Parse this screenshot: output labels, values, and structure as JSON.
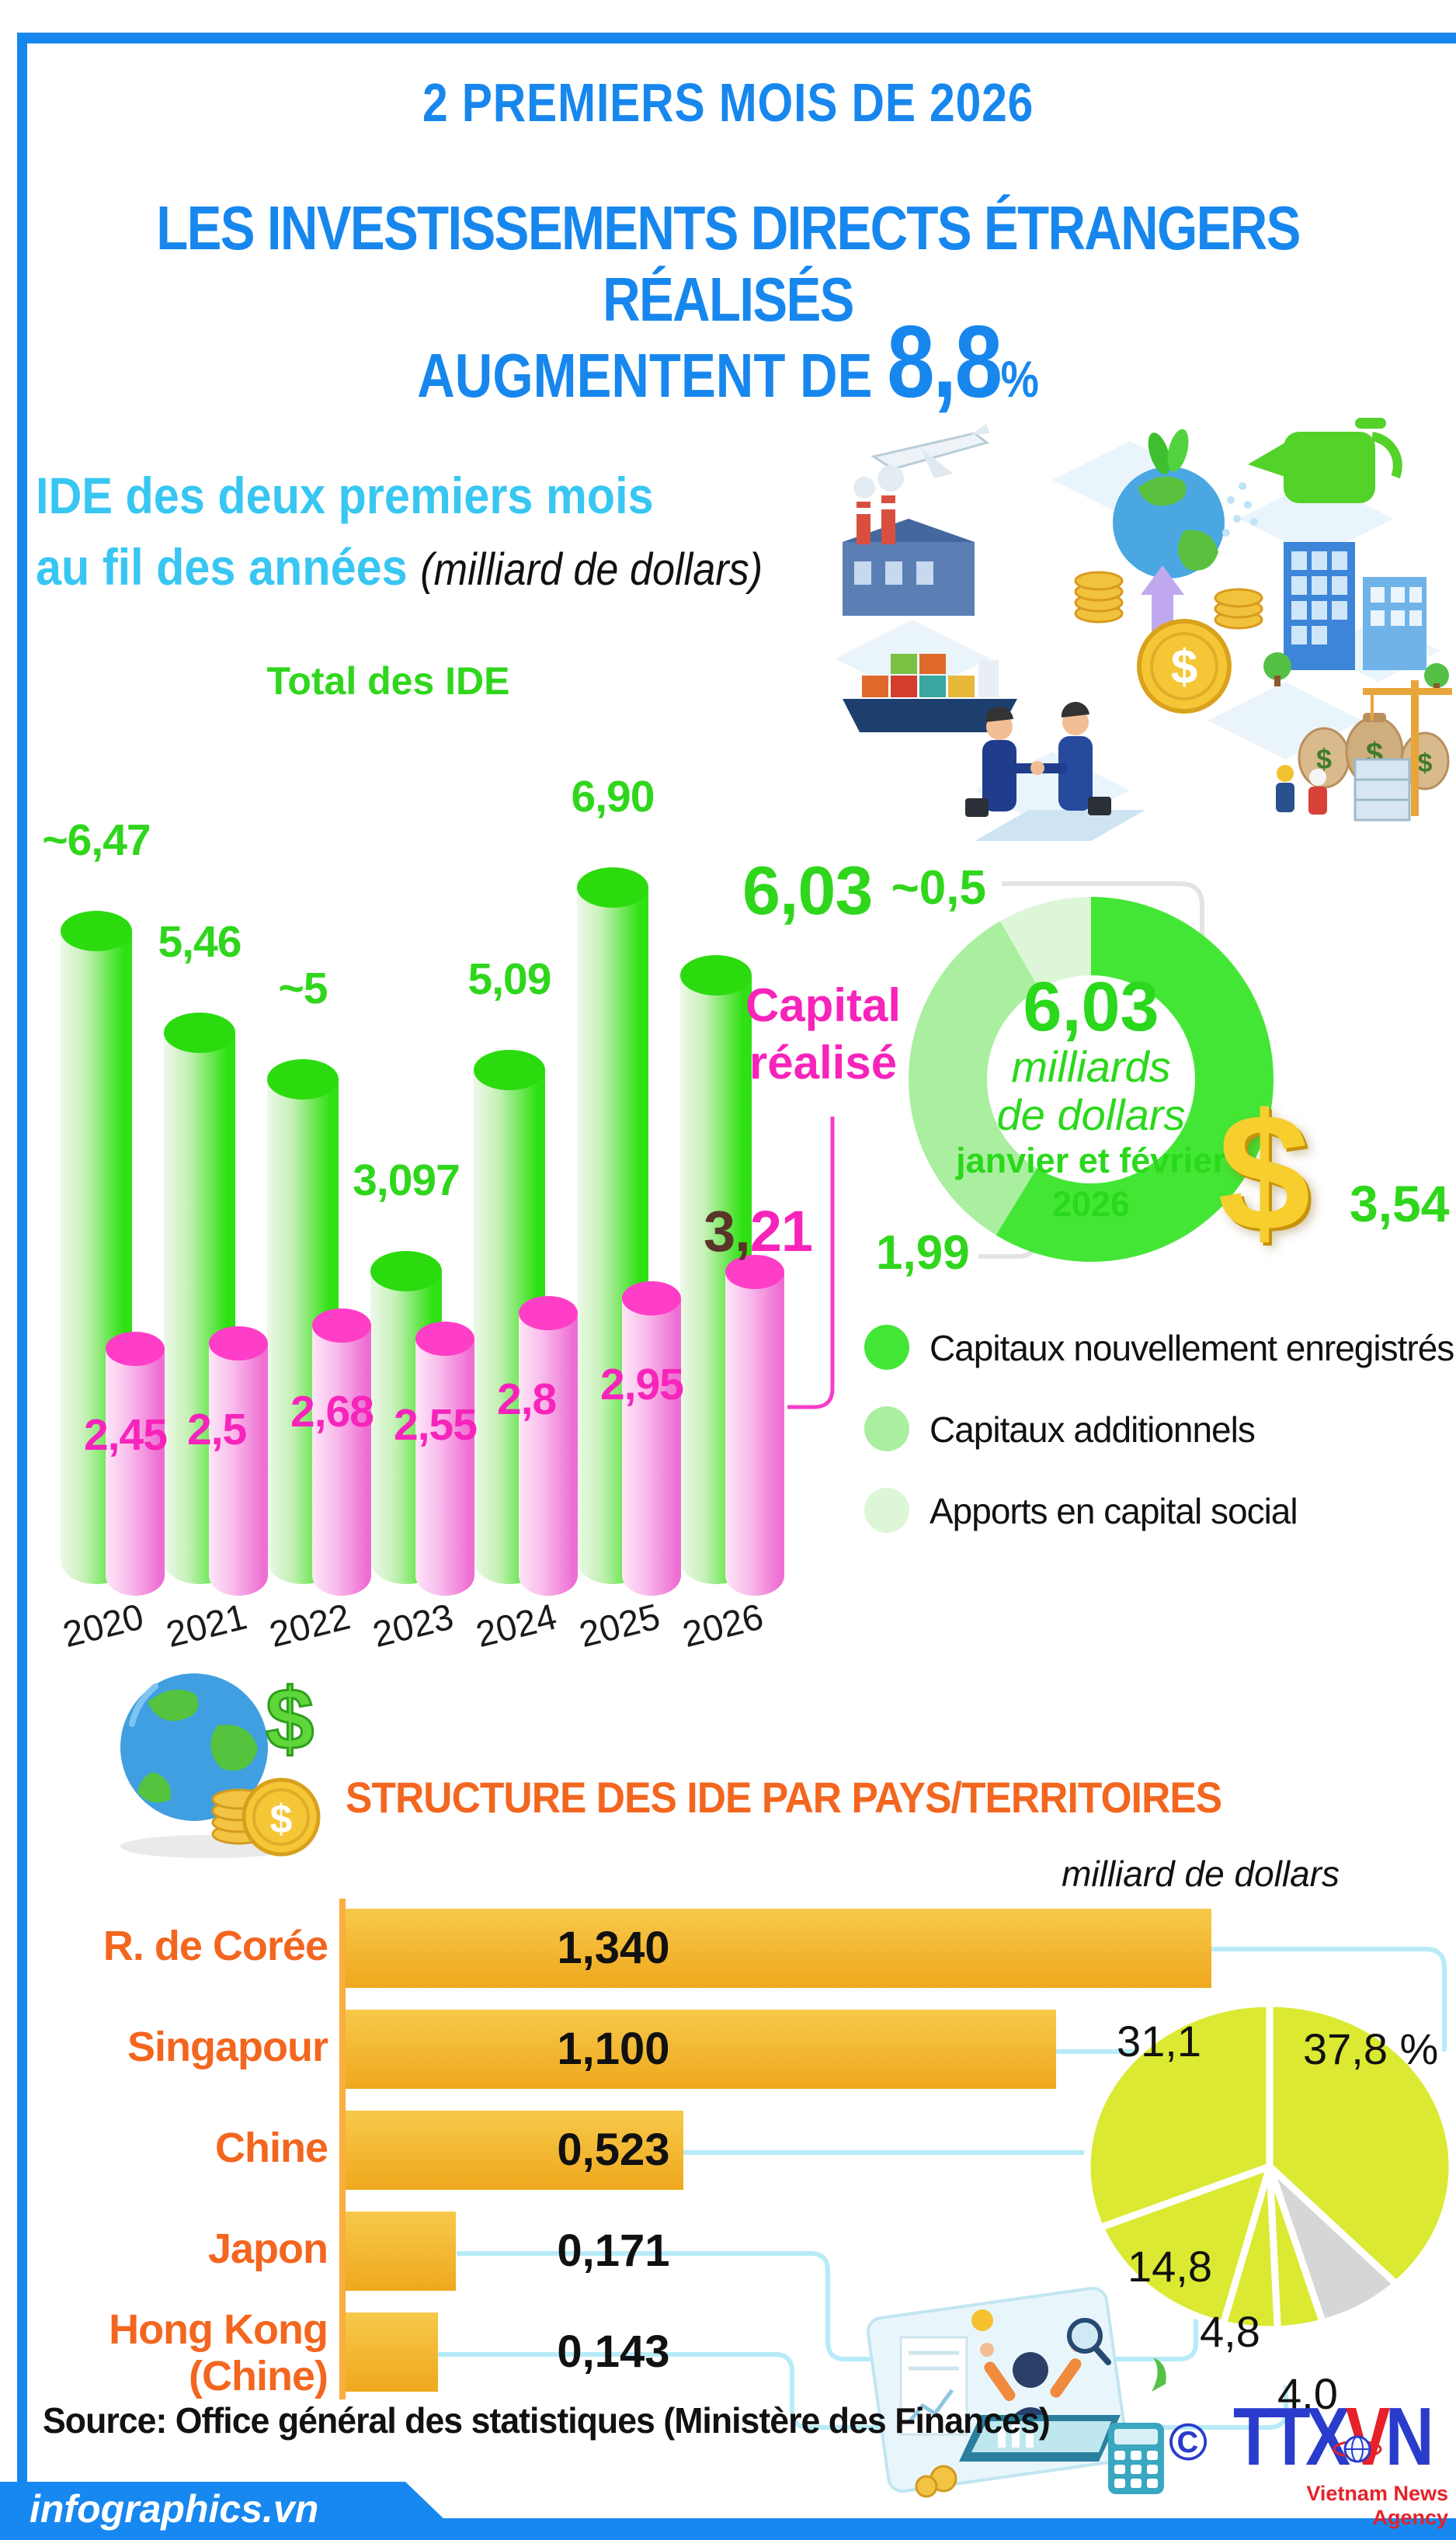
{
  "header": {
    "kicker": "2 PREMIERS MOIS DE 2026",
    "title": "LES INVESTISSEMENTS DIRECTS ÉTRANGERS RÉALISÉS",
    "sub_prefix": "AUGMENTENT DE ",
    "sub_value": "8,8",
    "sub_pct": "%"
  },
  "section1": {
    "heading_line1": "IDE des deux premiers mois",
    "heading_line2": "au fil des années",
    "heading_unit": "(milliard de dollars)",
    "green_series_label": "Total des IDE",
    "pink_label_line1": "Capital",
    "pink_label_line2": "réalisé",
    "last_value_dark": "3,",
    "last_value_pink": "21"
  },
  "chart_data": [
    {
      "type": "bar",
      "name": "ide-deux-premiers-mois-par-annee",
      "unit": "milliard de dollars",
      "categories": [
        "2020",
        "2021",
        "2022",
        "2023",
        "2024",
        "2025",
        "2026"
      ],
      "series": [
        {
          "name": "Total des IDE",
          "values": [
            6.47,
            5.46,
            5.0,
            3.097,
            5.09,
            6.9,
            6.03
          ],
          "labels": [
            "~6,47",
            "5,46",
            "~5",
            "3,097",
            "5,09",
            "6,90",
            "6,03"
          ]
        },
        {
          "name": "Capital réalisé",
          "values": [
            2.45,
            2.5,
            2.68,
            2.55,
            2.8,
            2.95,
            3.21
          ],
          "labels": [
            "2,45",
            "2,5",
            "2,68",
            "2,55",
            "2,8",
            "2,95",
            "3,21"
          ]
        }
      ]
    },
    {
      "type": "pie",
      "name": "repartition-ide-janvier-fevrier-2026",
      "style": "donut",
      "center": {
        "value": "6,03",
        "unit_line1": "milliards",
        "unit_line2": "de dollars",
        "period_line1": "janvier et février",
        "period_line2": "2026"
      },
      "slices": [
        {
          "label": "3,54",
          "value": 3.54,
          "color": "#44e636",
          "legend": "Capitaux nouvellement enregistrés"
        },
        {
          "label": "1,99",
          "value": 1.99,
          "color": "#a9ef9f",
          "legend": "Capitaux additionnels"
        },
        {
          "label": "~0,5",
          "value": 0.5,
          "color": "#ddf6d8",
          "legend": "Apports en capital social"
        }
      ]
    },
    {
      "type": "bar",
      "name": "structure-ide-par-pays",
      "orientation": "horizontal",
      "unit": "milliard de dollars",
      "rows": [
        {
          "label": "R. de Corée",
          "value": 1.34,
          "value_label": "1,340"
        },
        {
          "label": "Singapour",
          "value": 1.1,
          "value_label": "1,100"
        },
        {
          "label": "Chine",
          "value": 0.523,
          "value_label": "0,523"
        },
        {
          "label": "Japon",
          "value": 0.171,
          "value_label": "0,171"
        },
        {
          "label": "Hong Kong",
          "label2": "(Chine)",
          "value": 0.143,
          "value_label": "0,143"
        }
      ]
    },
    {
      "type": "pie",
      "name": "structure-ide-pourcentages",
      "slices": [
        {
          "label": "37,8 %",
          "value": 37.8,
          "color": "#dbe932"
        },
        {
          "label": "",
          "value": 7.5,
          "color": "#d6d6d6"
        },
        {
          "label": "4,0",
          "value": 4.0,
          "color": "#dbe932"
        },
        {
          "label": "4,8",
          "value": 4.8,
          "color": "#dbe932"
        },
        {
          "label": "14,8",
          "value": 14.8,
          "color": "#dbe932"
        },
        {
          "label": "31,1",
          "value": 31.1,
          "color": "#dbe932"
        }
      ]
    }
  ],
  "structure": {
    "title": "STRUCTURE DES IDE PAR PAYS/TERRITOIRES",
    "unit": "milliard de dollars"
  },
  "footer": {
    "source": "Source: Office général des statistiques (Ministère des Finances)",
    "site": "infographics.vn",
    "copyright": "©",
    "logo_part1": "TTX",
    "logo_part2": "V",
    "logo_part3": "N",
    "agency": "Vietnam News Agency",
    "dollar_sign": "$"
  },
  "colors": {
    "header_blue": "#1787ee",
    "cyan_heading": "#38c6f2",
    "green_value": "#2fd61c",
    "green_bar": "#2fe112",
    "pink_value": "#f724bb",
    "pink_bar_top": "#ff3ec8",
    "dark_brown": "#593428",
    "donut_greens": [
      "#44e636",
      "#a9ef9f",
      "#ddf6d8"
    ],
    "orange": "#f3661f",
    "amber_bar": "#f3b92d",
    "lime_pie": "#dbe932",
    "gray_pie": "#d6d6d6",
    "cyan_connector": "#b7ebf7",
    "footer_blue": "#1788ef",
    "logo_blue": "#2a3ccb",
    "logo_red": "#e62129",
    "gold": "#f6ce2e"
  }
}
